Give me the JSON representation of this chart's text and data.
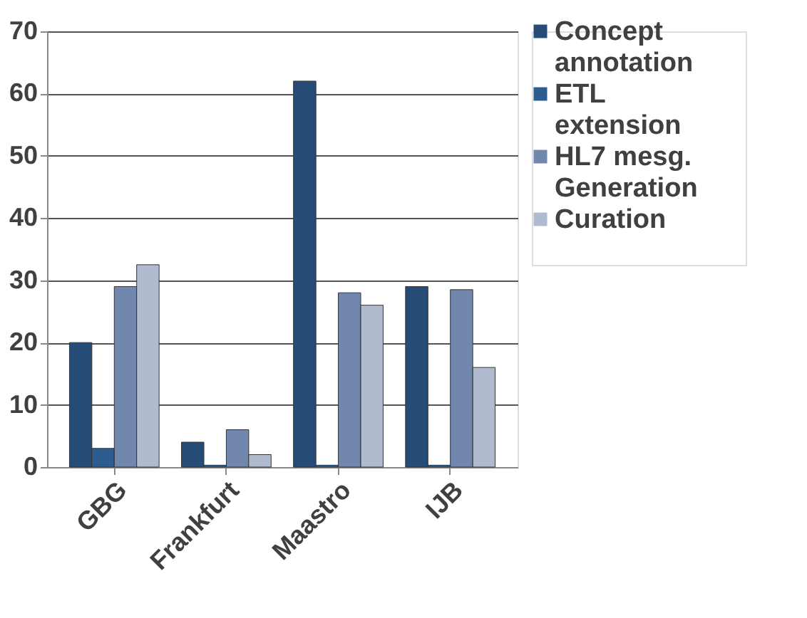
{
  "chart_data": {
    "type": "bar",
    "categories": [
      "GBG",
      "Frankfurt",
      "Maastro",
      "IJB"
    ],
    "series": [
      {
        "name": "Concept annotation",
        "color": "#264b77",
        "values": [
          20,
          4,
          62,
          29
        ]
      },
      {
        "name": "ETL extension",
        "color": "#2c5d8e",
        "values": [
          3,
          0.3,
          0.3,
          0.3
        ]
      },
      {
        "name": "HL7 mesg. Generation",
        "color": "#7287ad",
        "values": [
          29,
          6,
          28,
          28.5
        ]
      },
      {
        "name": "Curation",
        "color": "#b1bbd0",
        "values": [
          32.5,
          2,
          26,
          16
        ]
      }
    ],
    "ylim": [
      0,
      70
    ],
    "yticks": [
      0,
      10,
      20,
      30,
      40,
      50,
      60,
      70
    ],
    "grid": "y",
    "legend": "right"
  }
}
